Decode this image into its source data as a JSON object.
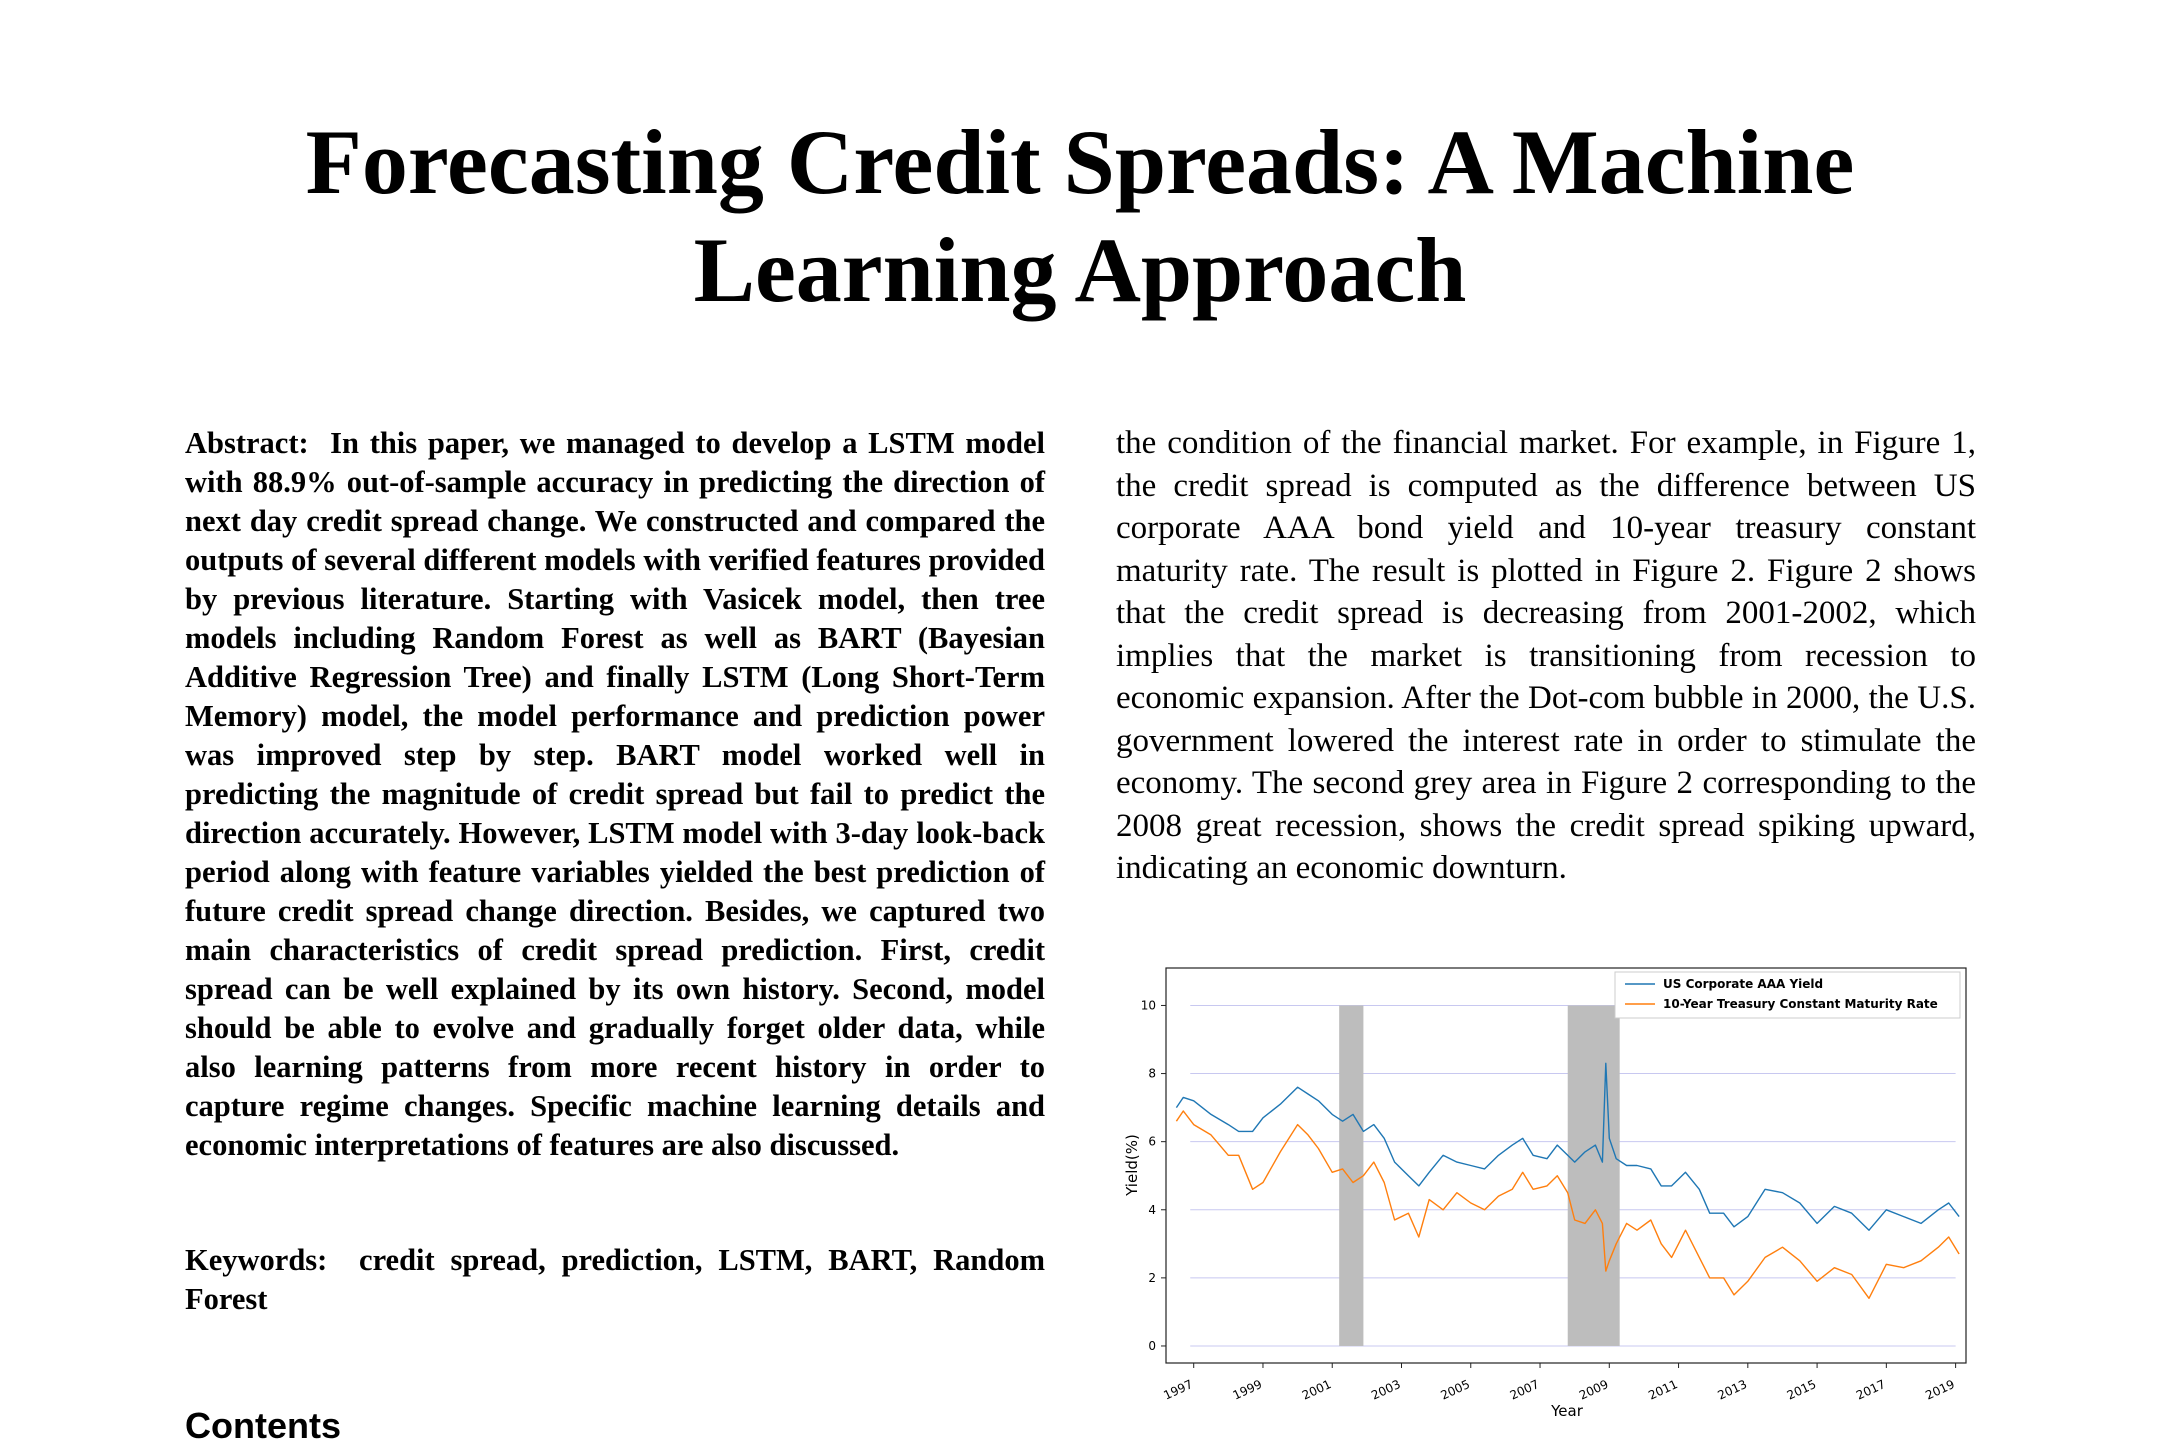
{
  "title": "Forecasting Credit Spreads: A Machine Learning Approach",
  "abstract": {
    "label": "Abstract:",
    "text": "In this paper, we managed to develop a LSTM model with 88.9% out-of-sample accuracy in predicting the direction of next day credit spread change.  We constructed and compared the outputs of several different models with verified features provided by previous literature. Starting with Vasicek model, then tree models including Random Forest as well as BART (Bayesian Additive Regression Tree) and finally LSTM (Long Short-Term Memory) model, the model performance and prediction power was improved step by step.  BART model worked well in predicting the magnitude of credit spread but fail to predict the direction accurately. However, LSTM model with 3-day look-back period along with feature variables yielded the best prediction of future credit spread change direction.  Besides, we captured two main characteristics of credit spread prediction.  First, credit spread can be well explained by its own history.  Second, model should be able to evolve and gradually forget older data, while also learning patterns from more recent history in order to capture regime changes. Specific machine learning details and economic interpretations of features are also discussed."
  },
  "keywords": {
    "label": "Keywords:",
    "text": "credit spread, prediction, LSTM, BART, Random Forest"
  },
  "contents_heading": "Contents",
  "body_paragraph": "the condition of the financial market. For example, in Figure 1, the credit spread is computed as the difference between US corporate AAA bond yield and 10-year treasury constant maturity rate.  The result is plotted in Figure 2.  Figure 2 shows that the credit spread is decreasing from 2001-2002, which implies that the market is transitioning from recession to economic expansion.  After the Dot-com bubble in 2000, the U.S. government lowered the interest rate in order to stimulate the economy.  The second grey area in Figure 2 corresponding to the 2008 great recession, shows the credit spread spiking upward, indicating an economic downturn.",
  "chart_data": {
    "type": "line",
    "xlabel": "Year",
    "ylabel": "Yield(%)",
    "xlim": [
      1996.2,
      2019.3
    ],
    "ylim": [
      -0.5,
      11.1
    ],
    "x_ticks": [
      1997,
      1999,
      2001,
      2003,
      2005,
      2007,
      2009,
      2011,
      2013,
      2015,
      2017,
      2019
    ],
    "y_ticks": [
      0,
      2,
      4,
      6,
      8,
      10
    ],
    "grid": "horizontal",
    "legend_position": "top-right",
    "shaded_regions": [
      {
        "from": 2001.2,
        "to": 2001.9
      },
      {
        "from": 2007.8,
        "to": 2009.3
      }
    ],
    "series": [
      {
        "name": "US Corporate AAA Yield",
        "color": "#1f77b4",
        "points": [
          [
            1996.5,
            7.0
          ],
          [
            1996.7,
            7.3
          ],
          [
            1997.0,
            7.2
          ],
          [
            1997.5,
            6.8
          ],
          [
            1998.0,
            6.5
          ],
          [
            1998.3,
            6.3
          ],
          [
            1998.7,
            6.3
          ],
          [
            1999.0,
            6.7
          ],
          [
            1999.5,
            7.1
          ],
          [
            2000.0,
            7.6
          ],
          [
            2000.3,
            7.4
          ],
          [
            2000.6,
            7.2
          ],
          [
            2001.0,
            6.8
          ],
          [
            2001.3,
            6.6
          ],
          [
            2001.6,
            6.8
          ],
          [
            2001.9,
            6.3
          ],
          [
            2002.2,
            6.5
          ],
          [
            2002.5,
            6.1
          ],
          [
            2002.8,
            5.4
          ],
          [
            2003.2,
            5.0
          ],
          [
            2003.5,
            4.7
          ],
          [
            2003.8,
            5.1
          ],
          [
            2004.2,
            5.6
          ],
          [
            2004.6,
            5.4
          ],
          [
            2005.0,
            5.3
          ],
          [
            2005.4,
            5.2
          ],
          [
            2005.8,
            5.6
          ],
          [
            2006.2,
            5.9
          ],
          [
            2006.5,
            6.1
          ],
          [
            2006.8,
            5.6
          ],
          [
            2007.2,
            5.5
          ],
          [
            2007.5,
            5.9
          ],
          [
            2007.8,
            5.6
          ],
          [
            2008.0,
            5.4
          ],
          [
            2008.3,
            5.7
          ],
          [
            2008.6,
            5.9
          ],
          [
            2008.8,
            5.4
          ],
          [
            2008.9,
            8.3
          ],
          [
            2009.0,
            6.1
          ],
          [
            2009.2,
            5.5
          ],
          [
            2009.5,
            5.3
          ],
          [
            2009.8,
            5.3
          ],
          [
            2010.2,
            5.2
          ],
          [
            2010.5,
            4.7
          ],
          [
            2010.8,
            4.7
          ],
          [
            2011.2,
            5.1
          ],
          [
            2011.6,
            4.6
          ],
          [
            2011.9,
            3.9
          ],
          [
            2012.3,
            3.9
          ],
          [
            2012.6,
            3.5
          ],
          [
            2013.0,
            3.8
          ],
          [
            2013.5,
            4.6
          ],
          [
            2014.0,
            4.5
          ],
          [
            2014.5,
            4.2
          ],
          [
            2015.0,
            3.6
          ],
          [
            2015.5,
            4.1
          ],
          [
            2016.0,
            3.9
          ],
          [
            2016.5,
            3.4
          ],
          [
            2017.0,
            4.0
          ],
          [
            2017.5,
            3.8
          ],
          [
            2018.0,
            3.6
          ],
          [
            2018.5,
            4.0
          ],
          [
            2018.8,
            4.2
          ],
          [
            2019.1,
            3.8
          ]
        ]
      },
      {
        "name": "10-Year Treasury Constant Maturity Rate",
        "color": "#ff7f0e",
        "points": [
          [
            1996.5,
            6.6
          ],
          [
            1996.7,
            6.9
          ],
          [
            1997.0,
            6.5
          ],
          [
            1997.5,
            6.2
          ],
          [
            1998.0,
            5.6
          ],
          [
            1998.3,
            5.6
          ],
          [
            1998.7,
            4.6
          ],
          [
            1999.0,
            4.8
          ],
          [
            1999.5,
            5.7
          ],
          [
            2000.0,
            6.5
          ],
          [
            2000.3,
            6.2
          ],
          [
            2000.6,
            5.8
          ],
          [
            2001.0,
            5.1
          ],
          [
            2001.3,
            5.2
          ],
          [
            2001.6,
            4.8
          ],
          [
            2001.9,
            5.0
          ],
          [
            2002.2,
            5.4
          ],
          [
            2002.5,
            4.8
          ],
          [
            2002.8,
            3.7
          ],
          [
            2003.2,
            3.9
          ],
          [
            2003.5,
            3.2
          ],
          [
            2003.8,
            4.3
          ],
          [
            2004.2,
            4.0
          ],
          [
            2004.6,
            4.5
          ],
          [
            2005.0,
            4.2
          ],
          [
            2005.4,
            4.0
          ],
          [
            2005.8,
            4.4
          ],
          [
            2006.2,
            4.6
          ],
          [
            2006.5,
            5.1
          ],
          [
            2006.8,
            4.6
          ],
          [
            2007.2,
            4.7
          ],
          [
            2007.5,
            5.0
          ],
          [
            2007.8,
            4.5
          ],
          [
            2008.0,
            3.7
          ],
          [
            2008.3,
            3.6
          ],
          [
            2008.6,
            4.0
          ],
          [
            2008.8,
            3.6
          ],
          [
            2008.9,
            2.2
          ],
          [
            2009.0,
            2.5
          ],
          [
            2009.2,
            3.0
          ],
          [
            2009.5,
            3.6
          ],
          [
            2009.8,
            3.4
          ],
          [
            2010.2,
            3.7
          ],
          [
            2010.5,
            3.0
          ],
          [
            2010.8,
            2.6
          ],
          [
            2011.2,
            3.4
          ],
          [
            2011.6,
            2.6
          ],
          [
            2011.9,
            2.0
          ],
          [
            2012.3,
            2.0
          ],
          [
            2012.6,
            1.5
          ],
          [
            2013.0,
            1.9
          ],
          [
            2013.5,
            2.6
          ],
          [
            2014.0,
            2.9
          ],
          [
            2014.5,
            2.5
          ],
          [
            2015.0,
            1.9
          ],
          [
            2015.5,
            2.3
          ],
          [
            2016.0,
            2.1
          ],
          [
            2016.5,
            1.4
          ],
          [
            2017.0,
            2.4
          ],
          [
            2017.5,
            2.3
          ],
          [
            2018.0,
            2.5
          ],
          [
            2018.5,
            2.9
          ],
          [
            2018.8,
            3.2
          ],
          [
            2019.1,
            2.7
          ]
        ]
      }
    ]
  }
}
